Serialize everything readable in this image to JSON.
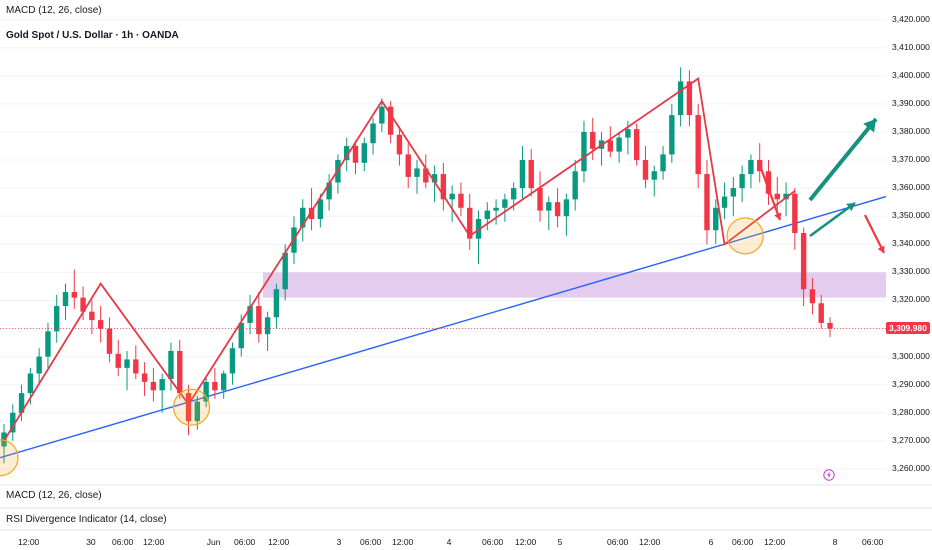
{
  "header": {
    "indicator_top": "MACD (12, 26, close)",
    "symbol": "Gold Spot / U.S. Dollar · 1h · OANDA"
  },
  "panes": {
    "macd": "MACD (12, 26, close)",
    "rsi": "RSI Divergence Indicator (14, close)"
  },
  "current_price": "3,309.980",
  "icons": {
    "flash": "lightning-icon"
  },
  "colors": {
    "up": "#089981",
    "down": "#f23645",
    "trendline": "#2962ff",
    "zone": "#d8b7e8",
    "zigzag": "#e53945",
    "highlight": "#f5a623"
  },
  "chart_data": {
    "type": "candlestick",
    "y_axis_labels": [
      "3,420.000",
      "3,410.000",
      "3,400.000",
      "3,390.000",
      "3,380.000",
      "3,370.000",
      "3,360.000",
      "3,350.000",
      "3,340.000",
      "3,330.000",
      "3,320.000",
      "3,310.000",
      "3,300.000",
      "3,290.000",
      "3,280.000",
      "3,270.000",
      "3,260.000"
    ],
    "x_axis_labels": [
      "12:00",
      "30",
      "06:00",
      "12:00",
      "Jun",
      "06:00",
      "12:00",
      "3",
      "06:00",
      "12:00",
      "4",
      "06:00",
      "12:00",
      "5",
      "06:00",
      "12:00",
      "6",
      "06:00",
      "12:00",
      "8",
      "06:00"
    ],
    "ylim": [
      3255,
      3422
    ],
    "support_zone": [
      3321,
      3330
    ],
    "trendline": {
      "start": 3264,
      "end": 3357
    },
    "zigzag": [
      3270,
      3326,
      3283,
      3391,
      3343,
      3399,
      3340,
      3359
    ],
    "last_price": 3309.98,
    "candles": [
      [
        3268,
        3276,
        3262,
        3273
      ],
      [
        3273,
        3283,
        3270,
        3280
      ],
      [
        3280,
        3290,
        3277,
        3287
      ],
      [
        3287,
        3296,
        3283,
        3294
      ],
      [
        3294,
        3303,
        3290,
        3300
      ],
      [
        3300,
        3312,
        3296,
        3309
      ],
      [
        3309,
        3322,
        3305,
        3318
      ],
      [
        3318,
        3326,
        3313,
        3323
      ],
      [
        3323,
        3331,
        3317,
        3321
      ],
      [
        3321,
        3325,
        3313,
        3316
      ],
      [
        3316,
        3320,
        3308,
        3313
      ],
      [
        3313,
        3318,
        3305,
        3310
      ],
      [
        3310,
        3314,
        3298,
        3301
      ],
      [
        3301,
        3306,
        3293,
        3296
      ],
      [
        3296,
        3302,
        3288,
        3299
      ],
      [
        3299,
        3304,
        3292,
        3294
      ],
      [
        3294,
        3298,
        3286,
        3291
      ],
      [
        3291,
        3296,
        3284,
        3288
      ],
      [
        3288,
        3294,
        3280,
        3292
      ],
      [
        3292,
        3305,
        3288,
        3302
      ],
      [
        3302,
        3306,
        3285,
        3287
      ],
      [
        3287,
        3290,
        3272,
        3277
      ],
      [
        3277,
        3286,
        3274,
        3284
      ],
      [
        3284,
        3293,
        3282,
        3291
      ],
      [
        3291,
        3296,
        3285,
        3288
      ],
      [
        3288,
        3295,
        3285,
        3294
      ],
      [
        3294,
        3305,
        3290,
        3303
      ],
      [
        3303,
        3315,
        3300,
        3312
      ],
      [
        3312,
        3322,
        3308,
        3318
      ],
      [
        3318,
        3323,
        3305,
        3308
      ],
      [
        3308,
        3316,
        3302,
        3314
      ],
      [
        3314,
        3326,
        3310,
        3324
      ],
      [
        3324,
        3340,
        3320,
        3337
      ],
      [
        3337,
        3350,
        3333,
        3346
      ],
      [
        3346,
        3356,
        3341,
        3353
      ],
      [
        3353,
        3360,
        3345,
        3349
      ],
      [
        3349,
        3358,
        3346,
        3356
      ],
      [
        3356,
        3365,
        3352,
        3362
      ],
      [
        3362,
        3372,
        3358,
        3370
      ],
      [
        3370,
        3378,
        3366,
        3375
      ],
      [
        3375,
        3377,
        3365,
        3369
      ],
      [
        3369,
        3378,
        3366,
        3376
      ],
      [
        3376,
        3385,
        3372,
        3383
      ],
      [
        3383,
        3392,
        3380,
        3389
      ],
      [
        3389,
        3391,
        3376,
        3379
      ],
      [
        3379,
        3382,
        3368,
        3372
      ],
      [
        3372,
        3376,
        3360,
        3364
      ],
      [
        3364,
        3370,
        3358,
        3367
      ],
      [
        3367,
        3372,
        3360,
        3362
      ],
      [
        3362,
        3368,
        3355,
        3365
      ],
      [
        3365,
        3369,
        3352,
        3356
      ],
      [
        3356,
        3361,
        3348,
        3358
      ],
      [
        3358,
        3362,
        3350,
        3353
      ],
      [
        3353,
        3358,
        3338,
        3342
      ],
      [
        3342,
        3352,
        3333,
        3349
      ],
      [
        3349,
        3355,
        3345,
        3352
      ],
      [
        3352,
        3356,
        3347,
        3353
      ],
      [
        3353,
        3358,
        3348,
        3356
      ],
      [
        3356,
        3362,
        3352,
        3360
      ],
      [
        3360,
        3375,
        3356,
        3370
      ],
      [
        3370,
        3374,
        3357,
        3360
      ],
      [
        3360,
        3366,
        3348,
        3352
      ],
      [
        3352,
        3357,
        3345,
        3355
      ],
      [
        3355,
        3360,
        3346,
        3350
      ],
      [
        3350,
        3358,
        3343,
        3356
      ],
      [
        3356,
        3370,
        3352,
        3366
      ],
      [
        3366,
        3384,
        3362,
        3380
      ],
      [
        3380,
        3385,
        3370,
        3374
      ],
      [
        3374,
        3380,
        3368,
        3377
      ],
      [
        3377,
        3382,
        3371,
        3373
      ],
      [
        3373,
        3380,
        3369,
        3378
      ],
      [
        3378,
        3384,
        3372,
        3381
      ],
      [
        3381,
        3383,
        3368,
        3370
      ],
      [
        3370,
        3375,
        3360,
        3363
      ],
      [
        3363,
        3368,
        3357,
        3366
      ],
      [
        3366,
        3375,
        3363,
        3372
      ],
      [
        3372,
        3390,
        3369,
        3386
      ],
      [
        3386,
        3403,
        3382,
        3398
      ],
      [
        3398,
        3402,
        3382,
        3386
      ],
      [
        3386,
        3390,
        3360,
        3365
      ],
      [
        3365,
        3370,
        3340,
        3345
      ],
      [
        3345,
        3356,
        3340,
        3353
      ],
      [
        3353,
        3362,
        3349,
        3357
      ],
      [
        3357,
        3364,
        3350,
        3360
      ],
      [
        3360,
        3368,
        3355,
        3365
      ],
      [
        3365,
        3372,
        3360,
        3370
      ],
      [
        3370,
        3376,
        3362,
        3366
      ],
      [
        3366,
        3370,
        3354,
        3358
      ],
      [
        3358,
        3364,
        3352,
        3356
      ],
      [
        3356,
        3362,
        3350,
        3358
      ],
      [
        3358,
        3360,
        3338,
        3344
      ],
      [
        3344,
        3346,
        3318,
        3324
      ],
      [
        3324,
        3328,
        3315,
        3319
      ],
      [
        3319,
        3322,
        3310,
        3312
      ],
      [
        3312,
        3314,
        3307,
        3310
      ]
    ]
  }
}
